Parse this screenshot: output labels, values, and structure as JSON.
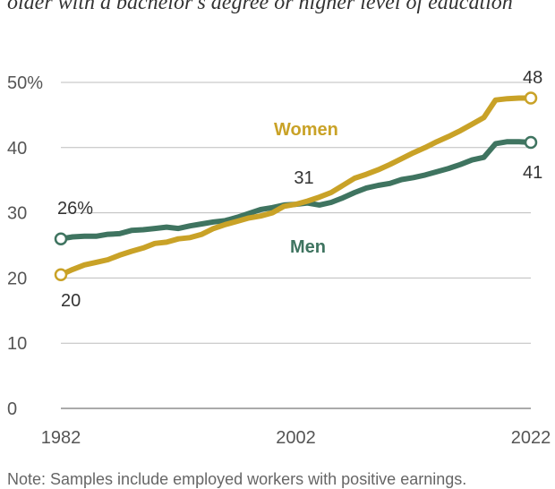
{
  "subtitle": "older with a bachelor's degree or higher level of education",
  "note": "Note: Samples include employed workers with positive earnings.",
  "colors": {
    "women": "#C9A227",
    "men": "#3F7460",
    "grid": "#bdbdbd",
    "text": "#333333"
  },
  "chart_data": {
    "type": "line",
    "title": "",
    "xlabel": "",
    "ylabel": "",
    "xlim": [
      1982,
      2022
    ],
    "ylim": [
      0,
      50
    ],
    "y_ticks": [
      0,
      10,
      20,
      30,
      40,
      50
    ],
    "y_tick_labels": [
      "0",
      "10",
      "20",
      "30",
      "40",
      "50%"
    ],
    "x_ticks": [
      1982,
      2002,
      2022
    ],
    "x_tick_labels": [
      "1982",
      "2002",
      "2022"
    ],
    "grid": true,
    "x": [
      1982,
      1983,
      1984,
      1985,
      1986,
      1987,
      1988,
      1989,
      1990,
      1991,
      1992,
      1993,
      1994,
      1995,
      1996,
      1997,
      1998,
      1999,
      2000,
      2001,
      2002,
      2003,
      2004,
      2005,
      2006,
      2007,
      2008,
      2009,
      2010,
      2011,
      2012,
      2013,
      2014,
      2015,
      2016,
      2017,
      2018,
      2019,
      2020,
      2021,
      2022
    ],
    "series": [
      {
        "name": "Women",
        "color": "#C9A227",
        "values": [
          20.5,
          21.3,
          22.0,
          22.4,
          22.8,
          23.5,
          24.1,
          24.6,
          25.3,
          25.5,
          26.0,
          26.2,
          26.7,
          27.6,
          28.2,
          28.7,
          29.2,
          29.5,
          30.0,
          31.0,
          31.3,
          31.8,
          32.4,
          33.1,
          34.2,
          35.3,
          35.9,
          36.6,
          37.4,
          38.3,
          39.2,
          40.0,
          40.9,
          41.7,
          42.6,
          43.6,
          44.6,
          47.3,
          47.5,
          47.6,
          47.6
        ],
        "start_label": "20",
        "end_label": "48"
      },
      {
        "name": "Men",
        "color": "#3F7460",
        "values": [
          26.0,
          26.3,
          26.4,
          26.4,
          26.7,
          26.8,
          27.3,
          27.4,
          27.6,
          27.8,
          27.6,
          28.0,
          28.3,
          28.6,
          28.8,
          29.3,
          29.9,
          30.5,
          30.8,
          31.2,
          31.3,
          31.5,
          31.2,
          31.6,
          32.3,
          33.1,
          33.8,
          34.2,
          34.5,
          35.1,
          35.4,
          35.8,
          36.3,
          36.8,
          37.4,
          38.1,
          38.5,
          40.6,
          40.9,
          40.9,
          40.8
        ],
        "start_label": "26%",
        "end_label": "41"
      }
    ],
    "annotations": [
      {
        "text": "31",
        "x": 2002,
        "y": 31.3
      }
    ]
  }
}
